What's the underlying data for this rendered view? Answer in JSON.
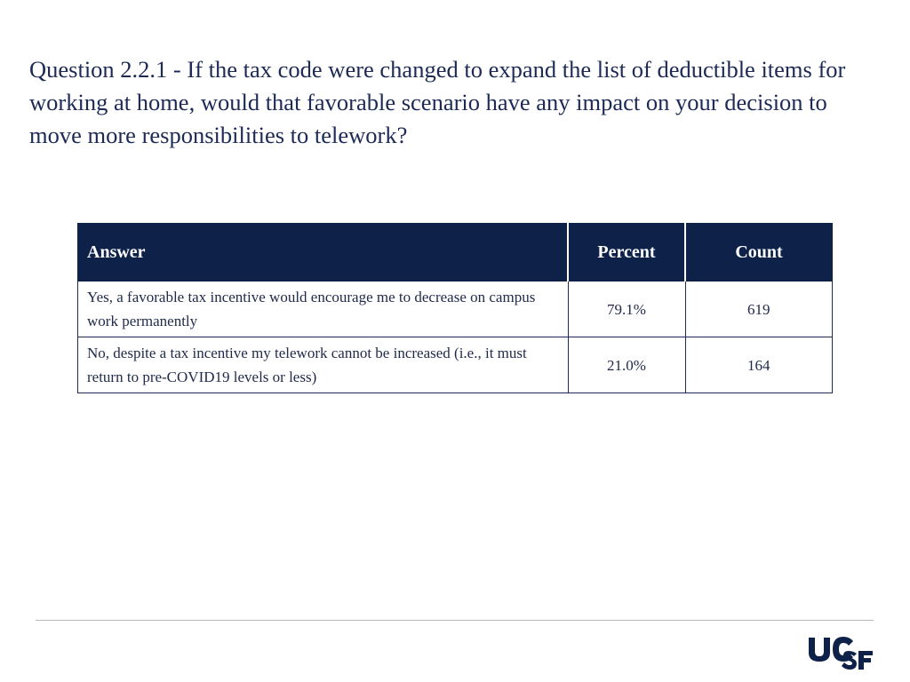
{
  "slide": {
    "title": "Question 2.2.1 - If the tax code were changed to expand the list of deductible items for working at home, would that favorable scenario have any impact on your decision to move more responsibilities to telework?"
  },
  "table": {
    "headers": {
      "answer": "Answer",
      "percent": "Percent",
      "count": "Count"
    },
    "rows": [
      {
        "answer": "Yes, a favorable tax incentive would encourage me to decrease on campus work permanently",
        "percent": "79.1%",
        "count": "619"
      },
      {
        "answer": "No, despite a tax incentive my telework cannot be increased (i.e.,  it must return to pre-COVID19 levels or less)",
        "percent": "21.0%",
        "count": "164"
      }
    ]
  },
  "footer": {
    "logo_text": "UCSF",
    "brand_color": "#0d2149"
  }
}
